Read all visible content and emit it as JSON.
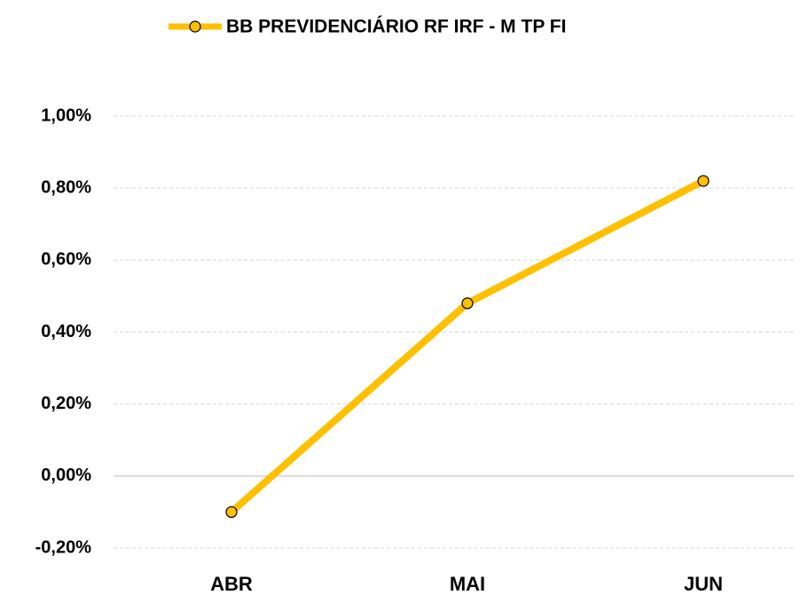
{
  "chart_data": {
    "type": "line",
    "categories": [
      "ABR",
      "MAI",
      "JUN"
    ],
    "series": [
      {
        "name": "BB PREVIDENCIÁRIO RF IRF - M TP FI",
        "color": "#FFC000",
        "values": [
          -0.1,
          0.48,
          0.82
        ]
      }
    ],
    "ylim": [
      -0.2,
      1.0
    ],
    "yticks": [
      {
        "value": -0.2,
        "label": "-0,20%"
      },
      {
        "value": 0,
        "label": "0,00%"
      },
      {
        "value": 0.2,
        "label": "0,20%"
      },
      {
        "value": 0.4,
        "label": "0,40%"
      },
      {
        "value": 0.6,
        "label": "0,60%"
      },
      {
        "value": 0.8,
        "label": "0,80%"
      },
      {
        "value": 1.0,
        "label": "1,00%"
      }
    ],
    "grid": true,
    "legend": "top"
  }
}
